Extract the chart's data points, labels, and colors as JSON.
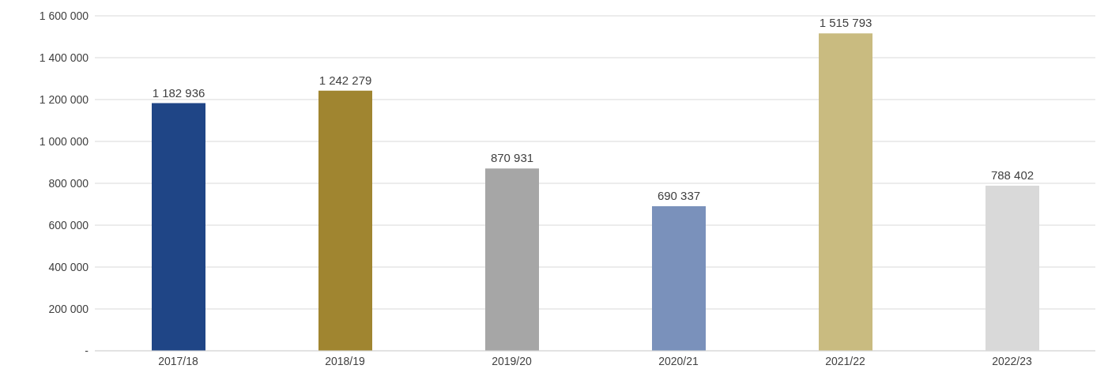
{
  "chart_data": {
    "type": "bar",
    "categories": [
      "2017/18",
      "2018/19",
      "2019/20",
      "2020/21",
      "2021/22",
      "2022/23"
    ],
    "values": [
      1182936,
      1242279,
      870931,
      690337,
      1515793,
      788402
    ],
    "colors": [
      "#1f4586",
      "#a08530",
      "#a6a6a6",
      "#7a91bb",
      "#c9bb80",
      "#d9d9d9"
    ],
    "value_labels": [
      "1 182 936",
      "1 242 279",
      "870 931",
      "690 337",
      "1 515 793",
      "788 402"
    ],
    "ylim": [
      0,
      1600000
    ],
    "yticks": [
      {
        "value": 0,
        "label": "-"
      },
      {
        "value": 200000,
        "label": "200 000"
      },
      {
        "value": 400000,
        "label": "400 000"
      },
      {
        "value": 600000,
        "label": "600 000"
      },
      {
        "value": 800000,
        "label": "800 000"
      },
      {
        "value": 1000000,
        "label": "1 000 000"
      },
      {
        "value": 1200000,
        "label": "1 200 000"
      },
      {
        "value": 1400000,
        "label": "1 400 000"
      },
      {
        "value": 1600000,
        "label": "1 600 000"
      }
    ],
    "grid": "y"
  }
}
